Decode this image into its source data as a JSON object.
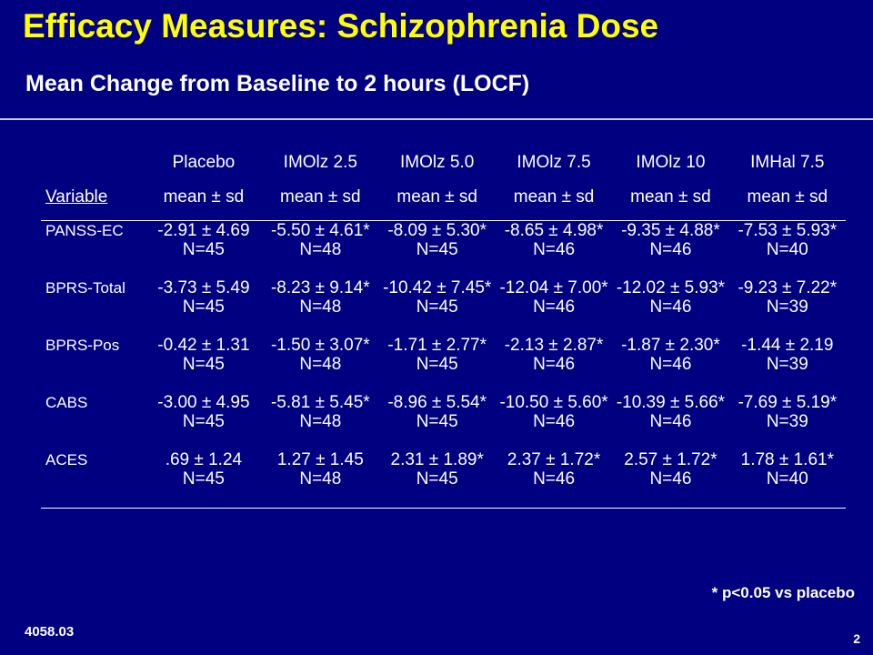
{
  "slide": {
    "title": "Efficacy Measures: Schizophrenia Dose",
    "subtitle": "Mean Change from Baseline to 2 hours (LOCF)",
    "footnote": "* p<0.05 vs placebo",
    "code": "4058.03",
    "page_number": "2"
  },
  "table": {
    "variable_header": "Variable",
    "columns": [
      {
        "name": "Placebo",
        "sub": "mean ± sd"
      },
      {
        "name": "IMOlz 2.5",
        "sub": "mean ± sd"
      },
      {
        "name": "IMOlz 5.0",
        "sub": "mean ± sd"
      },
      {
        "name": "IMOlz 7.5",
        "sub": "mean ± sd"
      },
      {
        "name": "IMOlz 10",
        "sub": "mean ± sd"
      },
      {
        "name": "IMHal 7.5",
        "sub": "mean ± sd"
      }
    ],
    "rows": [
      {
        "variable": "PANSS-EC",
        "cells": [
          {
            "value": "-2.91 ± 4.69",
            "n": "N=45"
          },
          {
            "value": "-5.50 ± 4.61*",
            "n": "N=48"
          },
          {
            "value": "-8.09 ±  5.30*",
            "n": "N=45"
          },
          {
            "value": "-8.65 ± 4.98*",
            "n": "N=46"
          },
          {
            "value": "-9.35 ± 4.88*",
            "n": "N=46"
          },
          {
            "value": "-7.53 ± 5.93*",
            "n": "N=40"
          }
        ]
      },
      {
        "variable": "BPRS-Total",
        "cells": [
          {
            "value": "-3.73 ± 5.49",
            "n": "N=45"
          },
          {
            "value": "-8.23 ± 9.14*",
            "n": "N=48"
          },
          {
            "value": "-10.42 ± 7.45*",
            "n": "N=45"
          },
          {
            "value": "-12.04 ± 7.00*",
            "n": "N=46"
          },
          {
            "value": "-12.02 ± 5.93*",
            "n": "N=46"
          },
          {
            "value": "-9.23 ± 7.22*",
            "n": "N=39"
          }
        ]
      },
      {
        "variable": "BPRS-Pos",
        "cells": [
          {
            "value": "-0.42 ± 1.31",
            "n": "N=45"
          },
          {
            "value": "-1.50 ± 3.07*",
            "n": "N=48"
          },
          {
            "value": "-1.71 ± 2.77*",
            "n": "N=45"
          },
          {
            "value": "-2.13 ± 2.87*",
            "n": "N=46"
          },
          {
            "value": "-1.87 ± 2.30*",
            "n": "N=46"
          },
          {
            "value": "-1.44 ± 2.19",
            "n": "N=39"
          }
        ]
      },
      {
        "variable": "CABS",
        "cells": [
          {
            "value": "-3.00 ± 4.95",
            "n": "N=45"
          },
          {
            "value": "-5.81 ± 5.45*",
            "n": "N=48"
          },
          {
            "value": "-8.96 ± 5.54*",
            "n": "N=45"
          },
          {
            "value": "-10.50 ± 5.60*",
            "n": "N=46"
          },
          {
            "value": "-10.39 ± 5.66*",
            "n": "N=46"
          },
          {
            "value": "-7.69 ± 5.19*",
            "n": "N=39"
          }
        ]
      },
      {
        "variable": "ACES",
        "cells": [
          {
            "value": ".69 ± 1.24",
            "n": "N=45"
          },
          {
            "value": "1.27 ± 1.45",
            "n": "N=48"
          },
          {
            "value": "2.31 ± 1.89*",
            "n": "N=45"
          },
          {
            "value": "2.37 ± 1.72*",
            "n": "N=46"
          },
          {
            "value": "2.57 ± 1.72*",
            "n": "N=46"
          },
          {
            "value": "1.78 ± 1.61*",
            "n": "N=40"
          }
        ]
      }
    ]
  },
  "colors": {
    "background": "#000080",
    "title": "#ffff00",
    "text": "#ffffff"
  }
}
